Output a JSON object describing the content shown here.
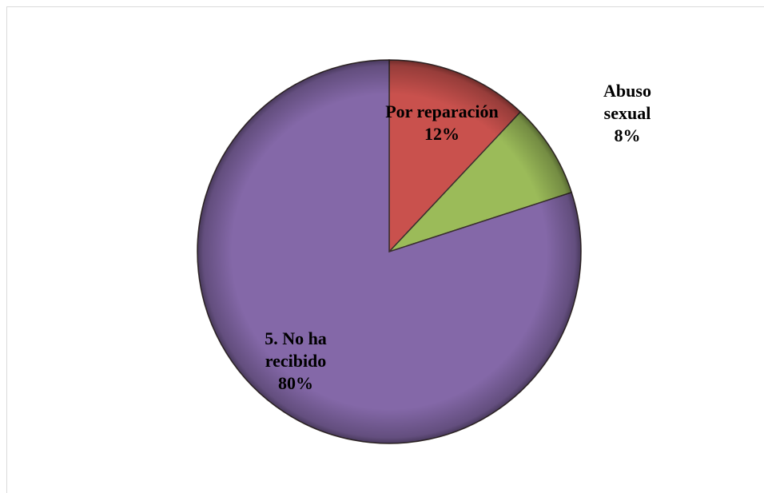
{
  "chart_data": {
    "type": "pie",
    "categories": [
      "Por reparación",
      "Abuso sexual",
      "5. No ha recibido"
    ],
    "values": [
      12,
      8,
      80
    ],
    "value_labels": [
      "12%",
      "8%",
      "80%"
    ],
    "colors": [
      "#c9514d",
      "#9bbb59",
      "#8468a8"
    ]
  }
}
